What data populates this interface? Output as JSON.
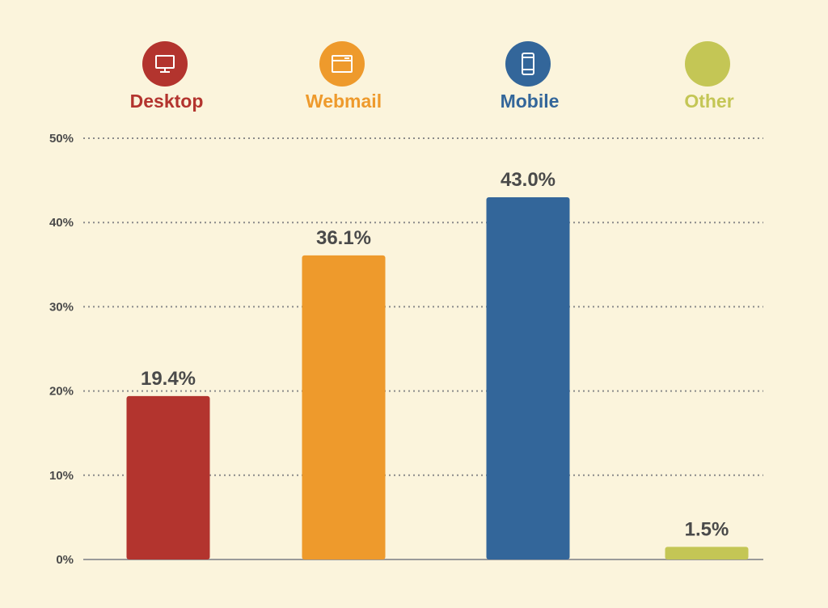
{
  "chart_data": {
    "type": "bar",
    "categories": [
      "Desktop",
      "Webmail",
      "Mobile",
      "Other"
    ],
    "values": [
      19.4,
      36.1,
      43.0,
      1.5
    ],
    "value_labels": [
      "19.4%",
      "36.1%",
      "43.0%",
      "1.5%"
    ],
    "colors": [
      "#b3342e",
      "#ee9a2c",
      "#33669a",
      "#c4c655"
    ],
    "icons": [
      "desktop-monitor-icon",
      "browser-window-icon",
      "smartphone-icon",
      "blank-circle"
    ],
    "ylim": [
      0,
      50
    ],
    "yticks": [
      0,
      10,
      20,
      30,
      40,
      50
    ],
    "ytick_labels": [
      "0%",
      "10%",
      "20%",
      "30%",
      "40%",
      "50%"
    ],
    "grid": true,
    "legend_position": "top",
    "title": "",
    "xlabel": "",
    "ylabel": ""
  }
}
